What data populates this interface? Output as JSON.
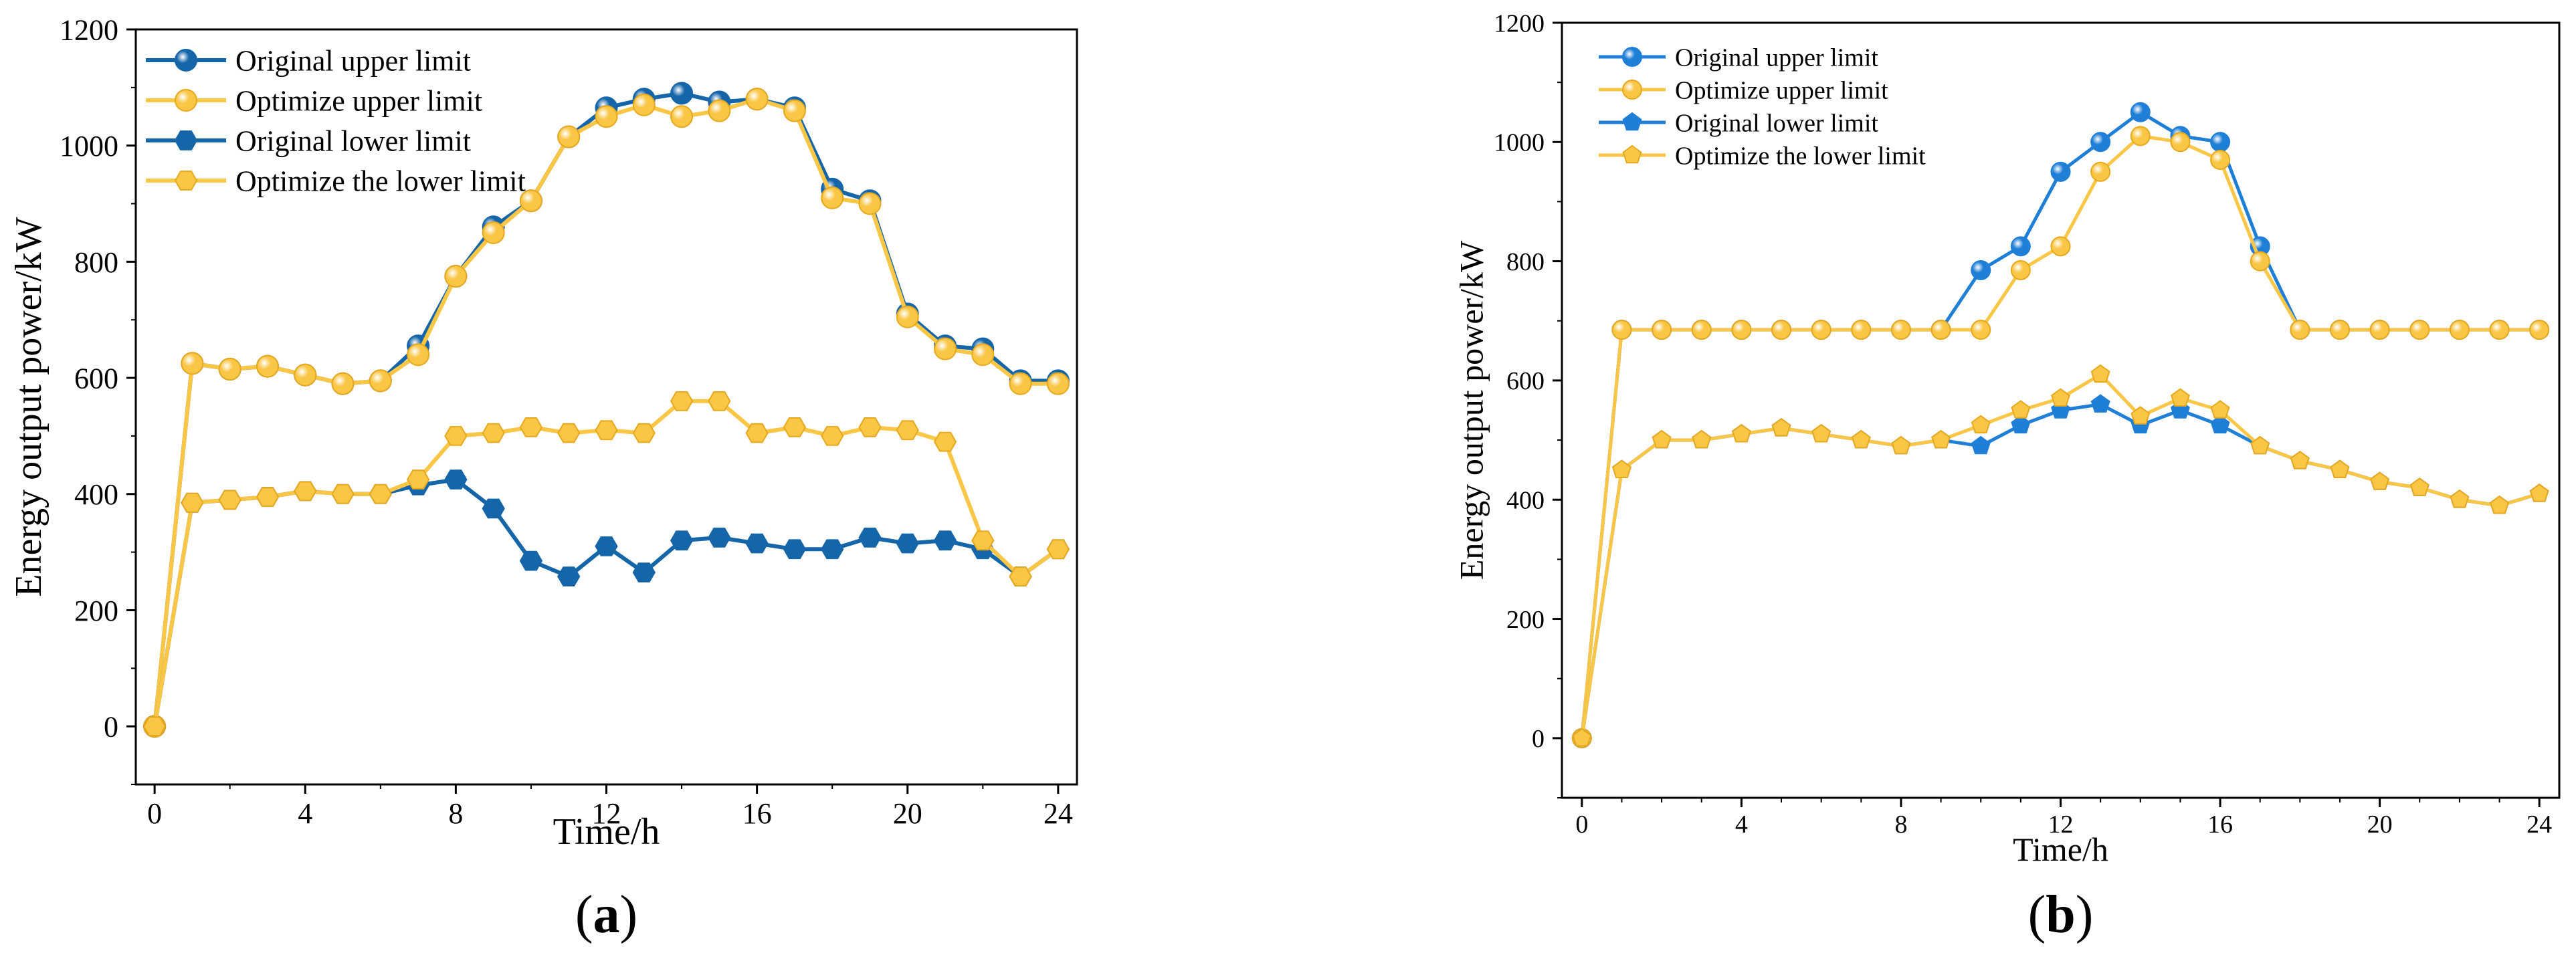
{
  "colors": {
    "original": "#1565a9",
    "original_b": "#1f7fd6",
    "optimize": "#f9c646",
    "optimize_stroke": "#e8a81c"
  },
  "chart_data": [
    {
      "type": "line",
      "panel_label": "a",
      "title": "",
      "xlabel": "Time/h",
      "ylabel": "Energy output power/kW",
      "xlim": [
        -0.5,
        24.5
      ],
      "ylim": [
        -100,
        1200
      ],
      "xticks": [
        0,
        4,
        8,
        12,
        16,
        20,
        24
      ],
      "yticks": [
        0,
        200,
        400,
        600,
        800,
        1000,
        1200
      ],
      "grid": false,
      "legend_position": "top-left",
      "x": [
        0,
        1,
        2,
        3,
        4,
        5,
        6,
        7,
        8,
        9,
        10,
        11,
        12,
        13,
        14,
        15,
        16,
        17,
        18,
        19,
        20,
        21,
        22,
        23,
        24
      ],
      "series": [
        {
          "name": "Original upper limit",
          "color": "original",
          "marker": "sphere",
          "values": [
            0,
            625,
            615,
            620,
            605,
            590,
            595,
            655,
            775,
            860,
            905,
            1015,
            1065,
            1080,
            1090,
            1075,
            1080,
            1065,
            925,
            905,
            710,
            655,
            650,
            595,
            595
          ]
        },
        {
          "name": "Optimize upper limit",
          "color": "optimize",
          "marker": "sphere",
          "values": [
            0,
            625,
            615,
            620,
            605,
            590,
            595,
            640,
            775,
            850,
            905,
            1015,
            1050,
            1070,
            1050,
            1060,
            1080,
            1060,
            910,
            900,
            705,
            650,
            640,
            590,
            590
          ]
        },
        {
          "name": "Original lower limit",
          "color": "original",
          "marker": "hexagon",
          "values": [
            0,
            385,
            390,
            395,
            405,
            400,
            400,
            415,
            425,
            375,
            285,
            258,
            310,
            265,
            320,
            325,
            315,
            305,
            305,
            325,
            315,
            320,
            305,
            258,
            305
          ]
        },
        {
          "name": "Optimize the lower limit",
          "color": "optimize",
          "marker": "hexagon",
          "values": [
            0,
            385,
            390,
            395,
            405,
            400,
            400,
            425,
            500,
            505,
            515,
            505,
            510,
            505,
            560,
            560,
            505,
            515,
            500,
            515,
            510,
            490,
            320,
            258,
            305
          ]
        }
      ]
    },
    {
      "type": "line",
      "panel_label": "b",
      "title": "",
      "xlabel": "Time/h",
      "ylabel": "Energy output power/kW",
      "xlim": [
        -0.5,
        24.5
      ],
      "ylim": [
        -100,
        1200
      ],
      "xticks": [
        0,
        4,
        8,
        12,
        16,
        20,
        24
      ],
      "yticks": [
        0,
        200,
        400,
        600,
        800,
        1000,
        1200
      ],
      "grid": false,
      "legend_position": "top-left",
      "x": [
        0,
        1,
        2,
        3,
        4,
        5,
        6,
        7,
        8,
        9,
        10,
        11,
        12,
        13,
        14,
        15,
        16,
        17,
        18,
        19,
        20,
        21,
        22,
        23,
        24
      ],
      "series": [
        {
          "name": "Original upper limit",
          "color": "original_b",
          "marker": "sphere",
          "values": [
            0,
            685,
            685,
            685,
            685,
            685,
            685,
            685,
            685,
            685,
            785,
            825,
            950,
            1000,
            1050,
            1010,
            1000,
            825,
            685,
            685,
            685,
            685,
            685,
            685,
            685
          ]
        },
        {
          "name": "Optimize upper limit",
          "color": "optimize",
          "marker": "sphere",
          "values": [
            0,
            685,
            685,
            685,
            685,
            685,
            685,
            685,
            685,
            685,
            685,
            785,
            825,
            950,
            1010,
            1000,
            970,
            800,
            685,
            685,
            685,
            685,
            685,
            685,
            685
          ]
        },
        {
          "name": "Original lower limit",
          "color": "original_b",
          "marker": "pentagon",
          "values": [
            0,
            450,
            500,
            500,
            510,
            520,
            510,
            500,
            490,
            500,
            490,
            525,
            550,
            560,
            525,
            550,
            525,
            490,
            465,
            450,
            430,
            420,
            400,
            390,
            410
          ]
        },
        {
          "name": "Optimize the lower limit",
          "color": "optimize",
          "marker": "pentagon",
          "values": [
            0,
            450,
            500,
            500,
            510,
            520,
            510,
            500,
            490,
            500,
            525,
            550,
            570,
            610,
            540,
            570,
            550,
            490,
            465,
            450,
            430,
            420,
            400,
            390,
            410
          ]
        }
      ]
    }
  ]
}
